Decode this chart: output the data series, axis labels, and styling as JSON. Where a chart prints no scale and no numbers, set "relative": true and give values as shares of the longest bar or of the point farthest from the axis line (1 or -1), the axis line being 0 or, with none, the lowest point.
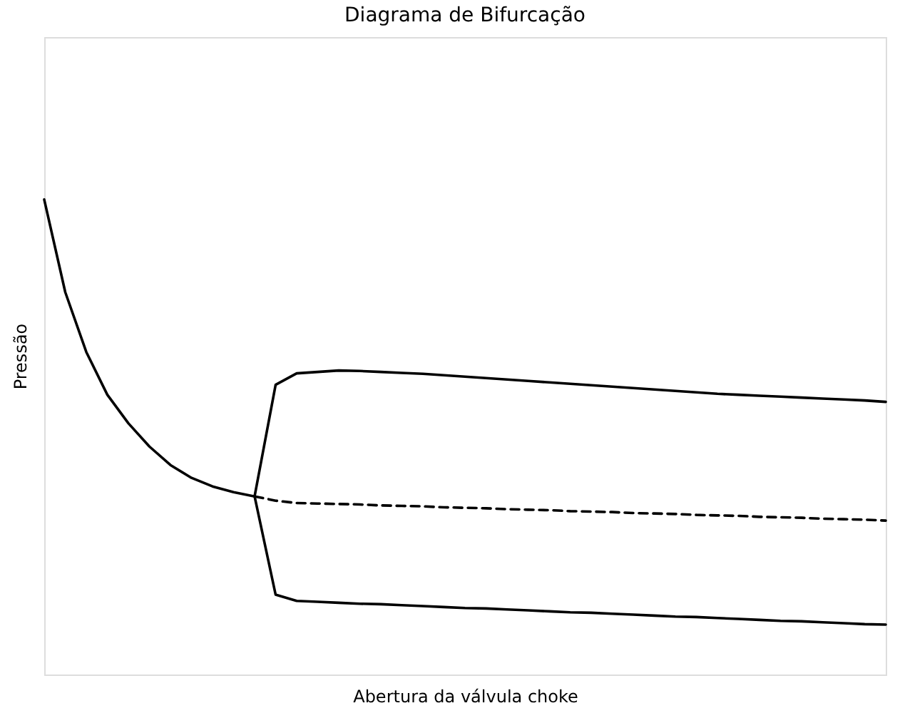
{
  "chart_data": {
    "type": "line",
    "title": "Diagrama de Bifurcação",
    "xlabel": "Abertura da válvula choke",
    "ylabel": "Pressão",
    "relative": true,
    "tick_labels": false,
    "grid": false,
    "categories": [
      null,
      null,
      null,
      null,
      null,
      null,
      null,
      null,
      null,
      null,
      null,
      null,
      null,
      null,
      null,
      null,
      null,
      null,
      null,
      null,
      null,
      null,
      null,
      null,
      null,
      null,
      null,
      null,
      null,
      null,
      null,
      null,
      null,
      null,
      null,
      null,
      null,
      null,
      null,
      null,
      null
    ],
    "series": [
      {
        "color": "#000000",
        "line_style": "solid",
        "values": [
          1.0,
          0.805,
          0.679,
          0.589,
          0.529,
          0.48,
          0.441,
          0.414,
          0.396,
          0.384,
          0.375,
          0.61,
          0.634,
          0.637,
          0.64,
          0.639,
          0.637,
          0.635,
          0.633,
          0.63,
          0.627,
          0.624,
          0.621,
          0.618,
          0.615,
          0.612,
          0.609,
          0.606,
          0.603,
          0.6,
          0.597,
          0.594,
          0.591,
          0.589,
          0.587,
          0.585,
          0.583,
          0.581,
          0.579,
          0.577,
          0.574
        ]
      },
      {
        "color": "#000000",
        "line_style": "solid",
        "values": [
          null,
          null,
          null,
          null,
          null,
          null,
          null,
          null,
          null,
          null,
          0.375,
          0.168,
          0.155,
          0.153,
          0.151,
          0.149,
          0.148,
          0.146,
          0.144,
          0.142,
          0.14,
          0.139,
          0.137,
          0.135,
          0.133,
          0.131,
          0.13,
          0.128,
          0.126,
          0.124,
          0.122,
          0.121,
          0.119,
          0.117,
          0.115,
          0.113,
          0.112,
          0.11,
          0.108,
          0.106,
          0.105
        ]
      },
      {
        "color": "#000000",
        "line_style": "dashed",
        "values": [
          null,
          null,
          null,
          null,
          null,
          null,
          null,
          null,
          null,
          null,
          0.375,
          0.366,
          0.361,
          0.36,
          0.359,
          0.358,
          0.356,
          0.355,
          0.354,
          0.352,
          0.351,
          0.35,
          0.348,
          0.347,
          0.346,
          0.344,
          0.343,
          0.342,
          0.34,
          0.339,
          0.338,
          0.336,
          0.335,
          0.334,
          0.332,
          0.331,
          0.33,
          0.328,
          0.327,
          0.326,
          0.324
        ]
      }
    ]
  }
}
